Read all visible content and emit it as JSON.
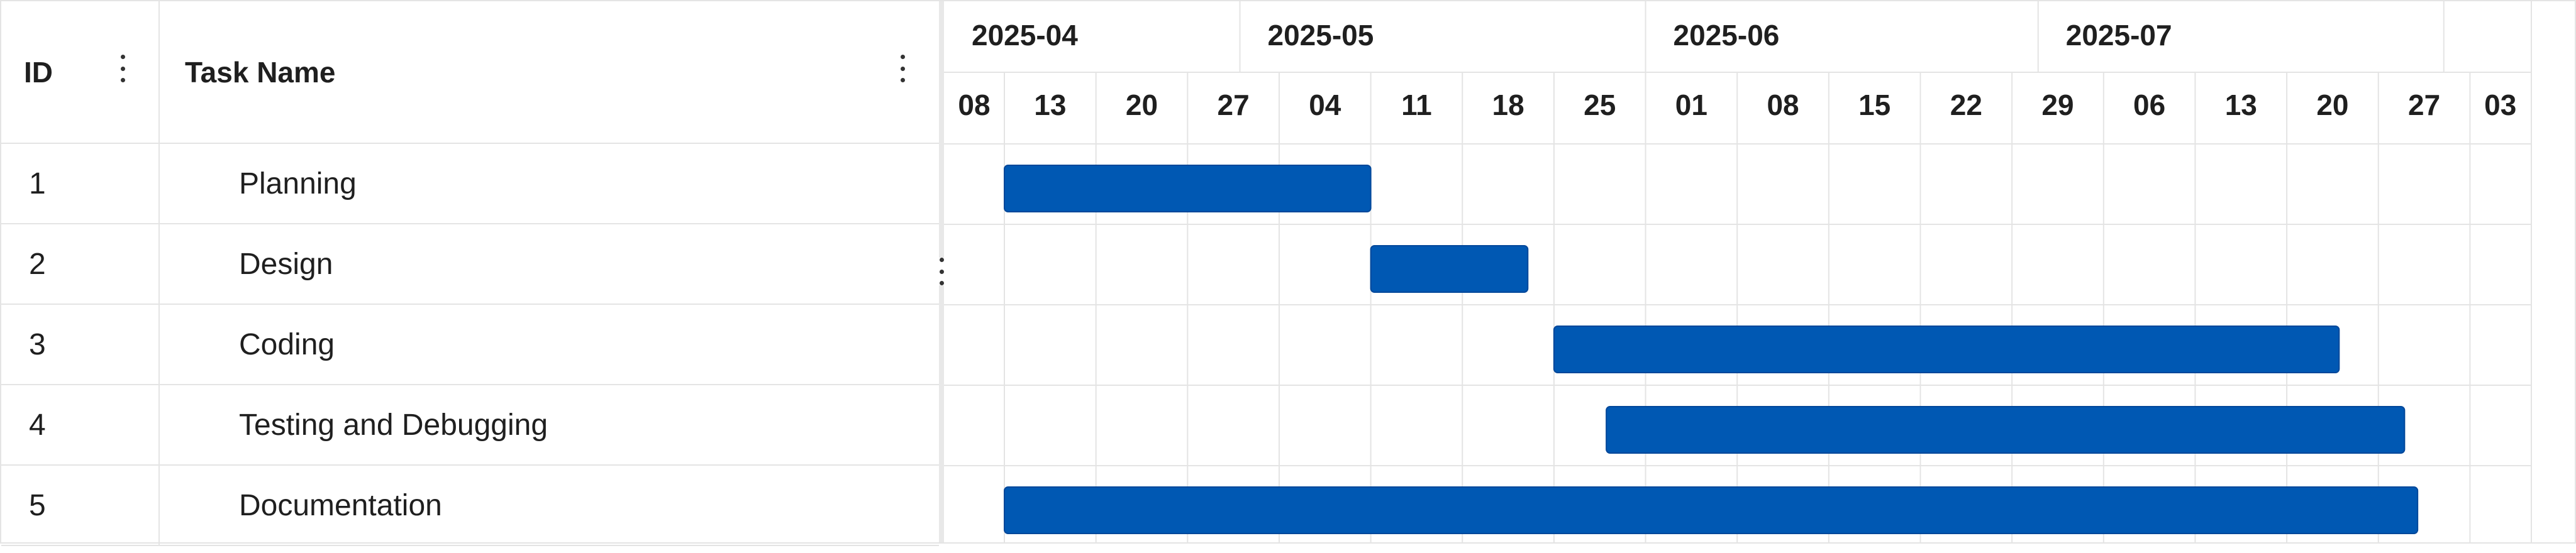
{
  "columns": {
    "id_label": "ID",
    "name_label": "Task Name"
  },
  "tasks": [
    {
      "id": "1",
      "name": "Planning",
      "start": "2025-04-13",
      "end": "2025-05-11"
    },
    {
      "id": "2",
      "name": "Design",
      "start": "2025-05-11",
      "end": "2025-05-23"
    },
    {
      "id": "3",
      "name": "Coding",
      "start": "2025-05-25",
      "end": "2025-07-24"
    },
    {
      "id": "4",
      "name": "Testing and Debugging",
      "start": "2025-05-29",
      "end": "2025-07-29"
    },
    {
      "id": "5",
      "name": "Documentation",
      "start": "2025-04-13",
      "end": "2025-07-30"
    }
  ],
  "timescale": {
    "months": [
      "2025-04",
      "2025-05",
      "2025-06",
      "2025-07"
    ],
    "weeks": [
      "08",
      "13",
      "20",
      "27",
      "04",
      "11",
      "18",
      "25",
      "01",
      "08",
      "15",
      "22",
      "29",
      "06",
      "13",
      "20",
      "27",
      "03"
    ]
  },
  "colors": {
    "bar": "#0058b3",
    "bar_border": "#00479a",
    "grid_line": "#e4e4e4",
    "header_text": "#1f1f1f"
  }
}
